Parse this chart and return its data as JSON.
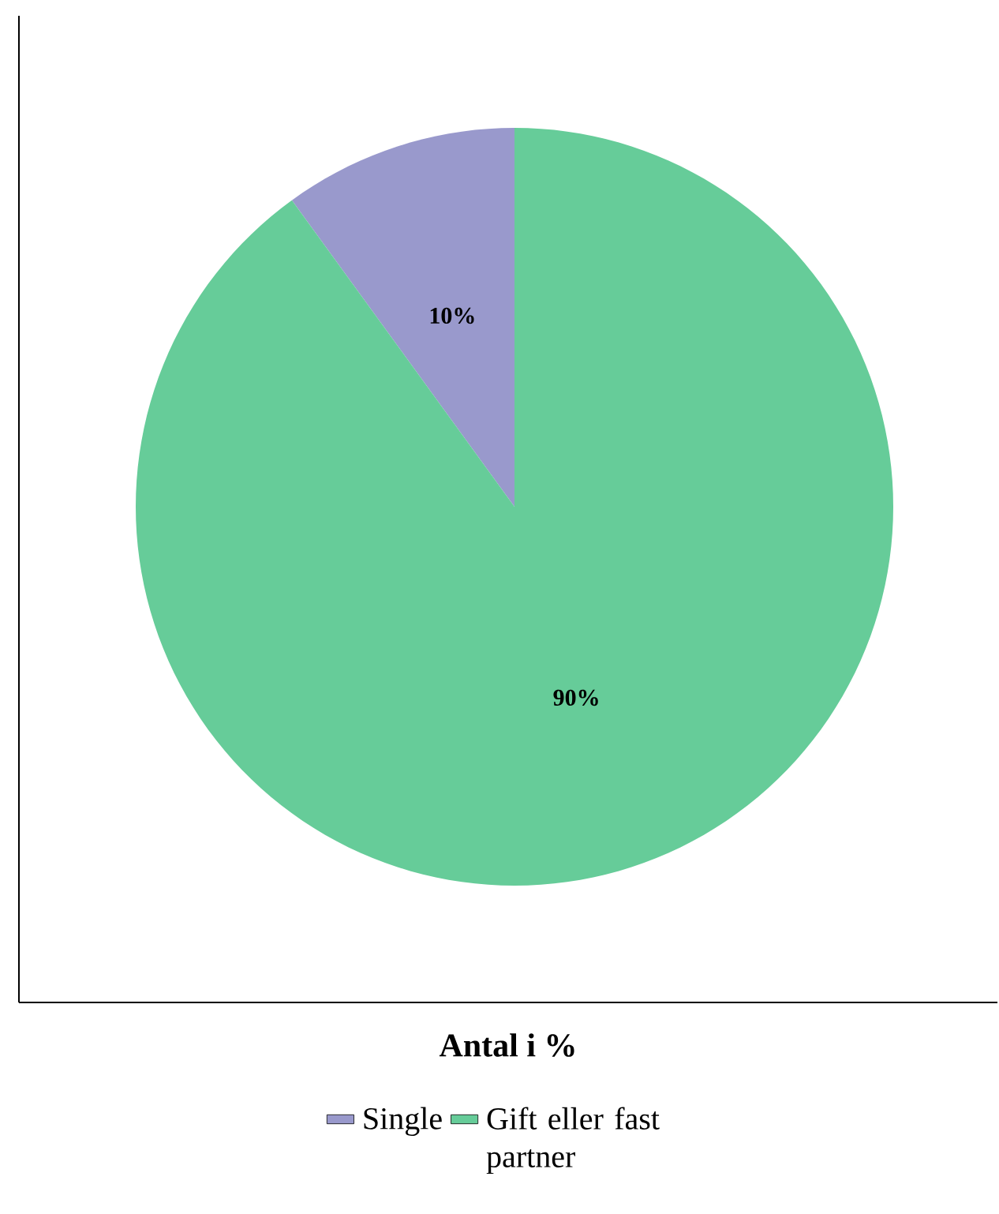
{
  "chart_data": {
    "type": "pie",
    "xlabel": "Antal i %",
    "categories": [
      "Single",
      "Gift eller fast partner"
    ],
    "values": [
      10,
      90
    ],
    "colors": [
      "#9999cc",
      "#66cc99"
    ],
    "value_labels": [
      "10%",
      "90%"
    ],
    "legend": "bottom"
  }
}
